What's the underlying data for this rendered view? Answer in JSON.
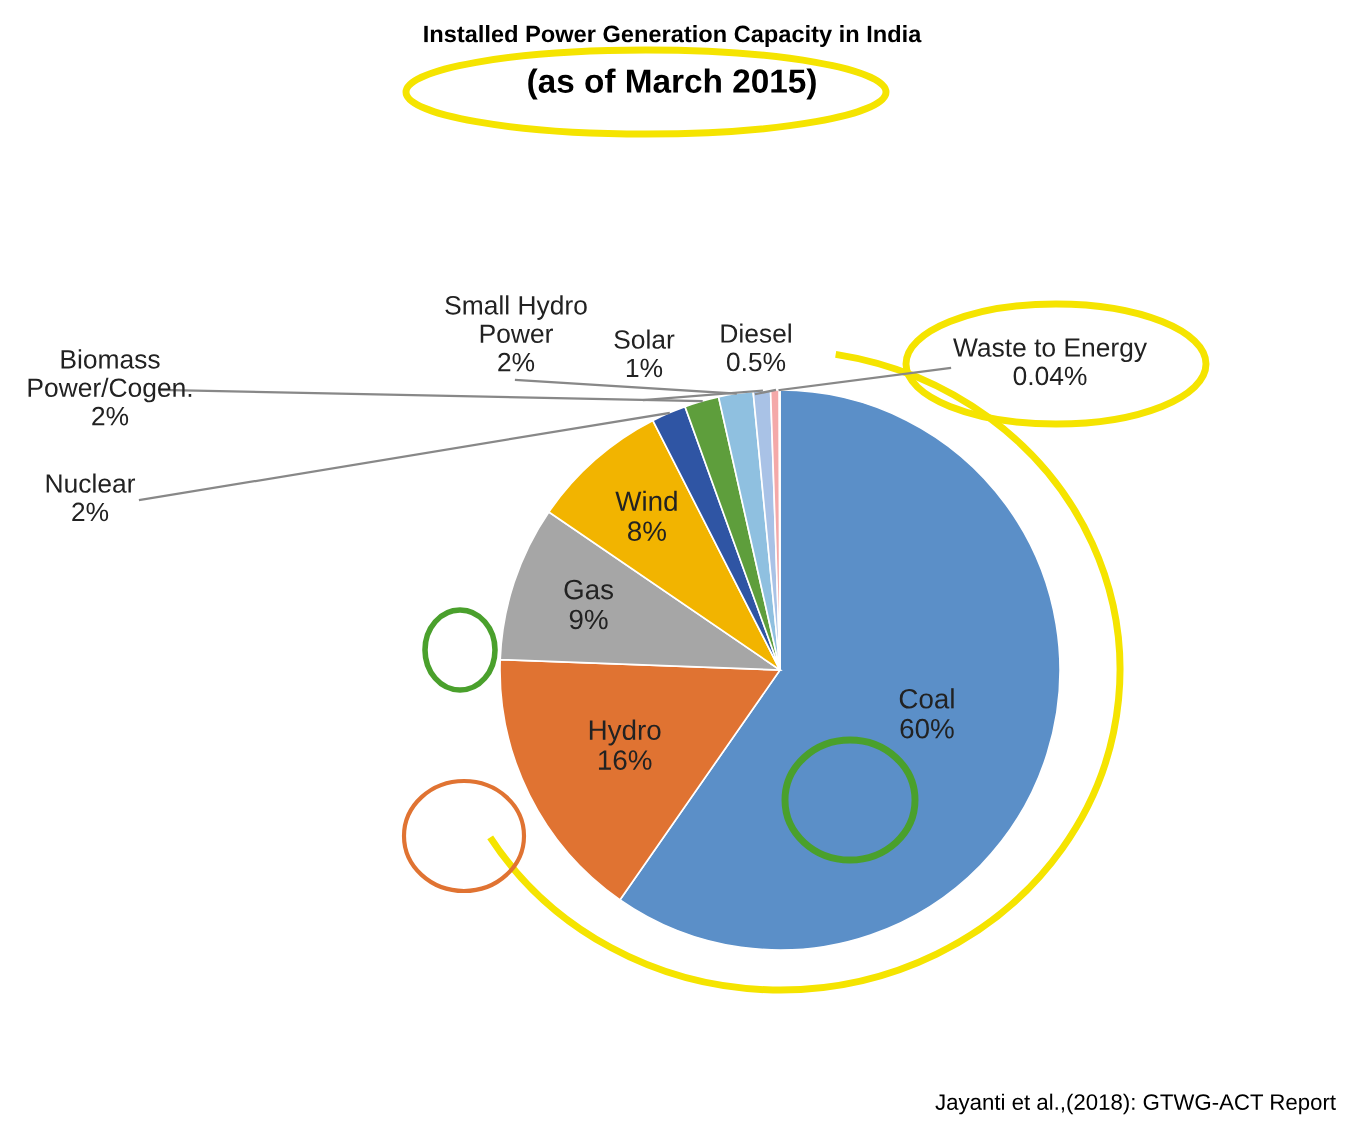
{
  "chart_data": {
    "type": "pie",
    "title": "Installed Power Generation Capacity in India",
    "subtitle": "(as of March 2015)",
    "categories": [
      "Coal",
      "Hydro",
      "Gas",
      "Wind",
      "Nuclear",
      "Biomass\nPower/Cogen.",
      "Small Hydro\nPower",
      "Solar",
      "Diesel",
      "Waste to Energy"
    ],
    "values": [
      60,
      16,
      9,
      8,
      2,
      2,
      2,
      1,
      0.5,
      0.04
    ],
    "value_labels": [
      "60%",
      "16%",
      "9%",
      "8%",
      "2%",
      "2%",
      "2%",
      "1%",
      "0.5%",
      "0.04%"
    ],
    "colors": [
      "#5b8fc8",
      "#e07332",
      "#a6a6a6",
      "#f2b400",
      "#2f55a4",
      "#5e9e3c",
      "#8fc0e0",
      "#a9c2e6",
      "#f4a9a9",
      "#c0504d"
    ],
    "annotations": [
      "Jayanti et al.,(2018): GTWG-ACT Report"
    ]
  }
}
